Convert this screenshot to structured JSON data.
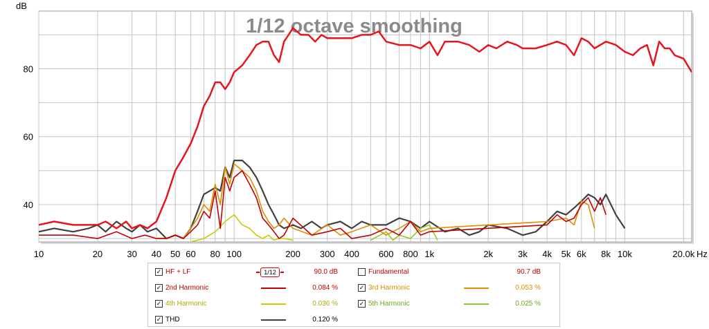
{
  "chart_data": {
    "type": "line",
    "title": "1/12 octave smoothing",
    "ylabel": "dB",
    "xunit": "Hz",
    "xscale": "log",
    "xlim": [
      10,
      22000
    ],
    "ylim": [
      29,
      97
    ],
    "grid": true,
    "x_ticks": [
      {
        "v": 10,
        "t": "10"
      },
      {
        "v": 20,
        "t": "20"
      },
      {
        "v": 30,
        "t": "30"
      },
      {
        "v": 40,
        "t": "40"
      },
      {
        "v": 50,
        "t": "50"
      },
      {
        "v": 60,
        "t": "60"
      },
      {
        "v": 80,
        "t": "80"
      },
      {
        "v": 100,
        "t": "100"
      },
      {
        "v": 200,
        "t": "200"
      },
      {
        "v": 300,
        "t": "300"
      },
      {
        "v": 400,
        "t": "400"
      },
      {
        "v": 600,
        "t": "600"
      },
      {
        "v": 800,
        "t": "800"
      },
      {
        "v": 1000,
        "t": "1k"
      },
      {
        "v": 2000,
        "t": "2k"
      },
      {
        "v": 3000,
        "t": "3k"
      },
      {
        "v": 4000,
        "t": "4k"
      },
      {
        "v": 5000,
        "t": "5k"
      },
      {
        "v": 6000,
        "t": "6k"
      },
      {
        "v": 8000,
        "t": "8k"
      },
      {
        "v": 10000,
        "t": "10k"
      },
      {
        "v": 20000,
        "t": "20.0k"
      }
    ],
    "x_grid": [
      10,
      20,
      30,
      40,
      50,
      60,
      70,
      80,
      90,
      100,
      200,
      300,
      400,
      500,
      600,
      700,
      800,
      900,
      1000,
      2000,
      3000,
      4000,
      5000,
      6000,
      7000,
      8000,
      9000,
      10000,
      20000
    ],
    "y_ticks": [
      40,
      60,
      80
    ],
    "y_grid": [
      30,
      40,
      50,
      60,
      70,
      80,
      90
    ],
    "series": [
      {
        "name": "HF + LF",
        "color": "#e8141c",
        "width": 2.5,
        "x": [
          10,
          12,
          15,
          18,
          20,
          22,
          25,
          28,
          30,
          33,
          36,
          40,
          45,
          50,
          55,
          60,
          65,
          70,
          75,
          80,
          85,
          90,
          95,
          100,
          110,
          120,
          130,
          140,
          150,
          160,
          170,
          180,
          190,
          200,
          220,
          240,
          260,
          280,
          300,
          350,
          400,
          450,
          500,
          550,
          600,
          700,
          800,
          900,
          1000,
          1100,
          1200,
          1400,
          1600,
          1800,
          2000,
          2200,
          2500,
          2800,
          3000,
          3500,
          4000,
          4500,
          5000,
          5500,
          6000,
          6500,
          7000,
          8000,
          9000,
          10000,
          11000,
          12000,
          13000,
          14000,
          15000,
          16000,
          17000,
          18000,
          20000,
          22000
        ],
        "y": [
          34,
          35,
          34,
          34,
          34,
          35,
          33,
          35,
          33,
          34,
          33,
          35,
          42,
          50,
          54,
          58,
          63,
          69,
          72,
          76,
          76,
          74,
          76,
          79,
          81,
          84,
          87,
          88,
          88,
          84,
          82,
          88,
          90,
          92,
          90,
          90,
          88,
          90,
          89,
          89,
          89,
          90,
          90,
          91,
          88,
          87,
          87,
          86,
          88,
          84,
          88,
          88,
          87,
          85,
          87,
          86,
          88,
          87,
          86,
          86,
          87,
          88,
          87,
          84,
          89,
          88,
          86,
          88,
          87,
          85,
          84,
          86,
          87,
          81,
          88,
          86,
          86,
          84,
          83,
          79
        ]
      },
      {
        "name": "2nd Harmonic",
        "color": "#c00000",
        "width": 1.6,
        "x": [
          10,
          15,
          20,
          25,
          30,
          35,
          40,
          45,
          50,
          55,
          60,
          65,
          70,
          75,
          80,
          85,
          90,
          95,
          100,
          110,
          120,
          130,
          140,
          150,
          160,
          170,
          180,
          200,
          250,
          300,
          350,
          400,
          500,
          600,
          700,
          800,
          900,
          1000,
          4000,
          4500,
          5000,
          5500,
          6000,
          6500,
          7000,
          7500,
          8000
        ],
        "y": [
          31,
          31,
          30,
          32,
          30,
          31,
          30,
          30,
          31,
          30,
          32,
          34,
          38,
          36,
          44,
          33,
          48,
          44,
          48,
          50,
          46,
          42,
          36,
          34,
          32,
          30,
          31,
          36,
          31,
          32,
          33,
          30,
          31,
          33,
          31,
          35,
          31,
          32,
          34,
          37,
          35,
          36,
          40,
          42,
          38,
          42,
          37
        ]
      },
      {
        "name": "3rd Harmonic",
        "color": "#e08c00",
        "width": 1.6,
        "x": [
          40,
          45,
          50,
          55,
          60,
          65,
          70,
          75,
          80,
          85,
          90,
          95,
          100,
          110,
          120,
          130,
          140,
          150,
          160,
          170,
          180,
          200,
          250,
          300,
          350,
          400,
          500,
          600,
          700,
          800,
          900,
          1000,
          4000,
          5000,
          5500,
          6000,
          6500,
          7000
        ],
        "y": [
          30,
          30,
          31,
          30,
          33,
          36,
          40,
          38,
          46,
          40,
          51,
          46,
          52,
          50,
          48,
          44,
          38,
          35,
          33,
          34,
          36,
          33,
          31,
          34,
          31,
          32,
          34,
          31,
          33,
          35,
          32,
          33,
          35,
          36,
          34,
          41,
          40,
          33
        ]
      },
      {
        "name": "4th Harmonic",
        "color": "#c8cc00",
        "width": 1.6,
        "x": [
          60,
          70,
          80,
          90,
          100,
          110,
          120,
          130,
          140,
          150,
          160,
          170,
          180,
          200
        ],
        "y": [
          29,
          30,
          32,
          35,
          37,
          34,
          33,
          31,
          30,
          31,
          29.5,
          30,
          30,
          29.5
        ]
      },
      {
        "name": "5th Harmonic",
        "color": "#8cc830",
        "width": 1.6,
        "x": [
          500,
          600,
          650,
          700,
          800,
          900,
          1000,
          1100
        ],
        "y": [
          29.5,
          32,
          29.5,
          31,
          30,
          33,
          34,
          29.5
        ]
      },
      {
        "name": "THD",
        "color": "#404040",
        "width": 2.2,
        "x": [
          10,
          12,
          15,
          18,
          20,
          22,
          25,
          28,
          30,
          33,
          36,
          40,
          45,
          50,
          55,
          60,
          65,
          70,
          75,
          80,
          85,
          90,
          95,
          100,
          110,
          120,
          130,
          140,
          150,
          160,
          170,
          180,
          200,
          220,
          250,
          280,
          300,
          350,
          400,
          450,
          500,
          600,
          700,
          800,
          900,
          1000,
          1200,
          1400,
          1600,
          1800,
          2000,
          2500,
          3000,
          3500,
          4000,
          4500,
          5000,
          5500,
          6000,
          6500,
          7000,
          7500,
          8000,
          9000,
          10000
        ],
        "y": [
          32,
          33,
          32,
          33,
          34,
          32,
          35,
          33,
          32,
          34,
          32,
          33,
          30,
          31,
          30,
          33,
          38,
          43,
          44,
          45,
          44,
          51,
          48,
          53,
          53,
          51,
          48,
          44,
          40,
          37,
          34,
          33,
          34,
          33,
          35,
          33,
          34,
          35,
          33,
          35,
          34,
          34,
          36,
          35,
          33,
          35,
          32,
          33,
          31,
          32,
          34,
          33,
          31,
          32,
          35,
          38,
          37,
          39,
          41,
          43,
          42,
          40,
          43,
          37,
          33
        ]
      }
    ]
  },
  "legend": {
    "rows": [
      [
        {
          "checked": true,
          "label": "HF + LF",
          "label_color": "#c00000",
          "smoothing": "1/12",
          "value": "90.0 dB",
          "value_color": "#c00000"
        },
        {
          "checked": false,
          "label": "Fundamental",
          "label_color": "#c00000",
          "value": "90.7 dB",
          "value_color": "#c00000"
        }
      ],
      [
        {
          "checked": true,
          "label": "2nd Harmonic",
          "label_color": "#c00000",
          "swatch": "#c00000",
          "value": "0.084 %",
          "value_color": "#c00000"
        },
        {
          "checked": true,
          "label": "3rd Harmonic",
          "label_color": "#e08c00",
          "swatch": "#e08c00",
          "value": "0.053 %",
          "value_color": "#e08c00"
        }
      ],
      [
        {
          "checked": true,
          "label": "4th Harmonic",
          "label_color": "#a8ac00",
          "swatch": "#c8cc00",
          "value": "0.036 %",
          "value_color": "#a8ac00"
        },
        {
          "checked": true,
          "label": "5th Harmonic",
          "label_color": "#6aa818",
          "swatch": "#8cc830",
          "value": "0.025 %",
          "value_color": "#6aa818"
        }
      ],
      [
        {
          "checked": true,
          "label": "THD",
          "label_color": "#000000",
          "swatch": "#404040",
          "value": "0.120 %",
          "value_color": "#000000"
        }
      ]
    ]
  }
}
